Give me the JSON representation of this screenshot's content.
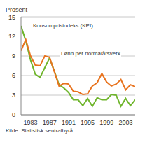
{
  "chart_data": {
    "type": "line",
    "subtitle": "Prosent",
    "source": "Kilde: Statistisk sentralbyrå.",
    "x": [
      1981,
      1982,
      1983,
      1984,
      1985,
      1986,
      1987,
      1988,
      1989,
      1990,
      1991,
      1992,
      1993,
      1994,
      1995,
      1996,
      1997,
      1998,
      1999,
      2000,
      2001,
      2002,
      2003,
      2004,
      2005
    ],
    "series": [
      {
        "name": "Konsumprisindeks (KPI)",
        "color": "#6fb52c",
        "values": [
          13.6,
          11.3,
          8.4,
          6.2,
          5.7,
          7.2,
          8.7,
          6.7,
          4.6,
          4.1,
          3.4,
          2.3,
          2.3,
          1.4,
          2.5,
          1.3,
          2.6,
          2.3,
          2.3,
          3.1,
          3.0,
          1.3,
          2.5,
          1.4,
          2.3
        ]
      },
      {
        "name": "Lønn per normalårsverk",
        "color": "#e8731e",
        "values": [
          9.8,
          11.5,
          9.0,
          7.6,
          7.5,
          9.0,
          8.8,
          6.6,
          4.4,
          4.8,
          4.7,
          3.6,
          3.5,
          3.1,
          3.2,
          4.4,
          4.9,
          6.3,
          5.0,
          4.4,
          4.7,
          5.4,
          3.8,
          4.6,
          4.3
        ]
      }
    ],
    "xlim": [
      1981,
      2005
    ],
    "xticks": [
      1983,
      1987,
      1991,
      1995,
      1999,
      2003
    ],
    "ylim": [
      0,
      15
    ],
    "yticks": [
      0,
      3,
      6,
      9,
      12,
      15
    ],
    "grid": true
  }
}
